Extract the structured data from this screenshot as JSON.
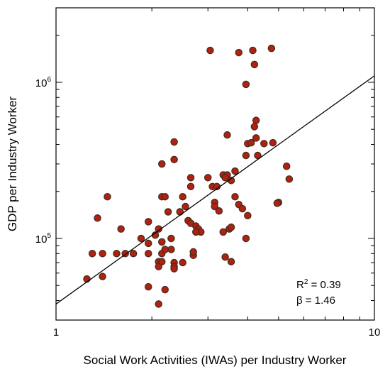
{
  "chart_data": {
    "type": "scatter",
    "xlabel": "Social Work Activities (IWAs) per Industry Worker",
    "ylabel": "GDP per Industry Worker",
    "xscale": "log",
    "yscale": "log",
    "xlim": [
      1,
      10
    ],
    "ylim": [
      30000,
      3000000
    ],
    "grid": false,
    "x_ticks": [
      {
        "value": 1,
        "label": "1"
      },
      {
        "value": 10,
        "label": "10"
      }
    ],
    "y_ticks": [
      {
        "value": 100000,
        "base": "10",
        "exp": "5"
      },
      {
        "value": 1000000,
        "base": "10",
        "exp": "6"
      }
    ],
    "annotations": {
      "r2_prefix": "R",
      "r2_sup": "2",
      "r2_value": " = 0.39",
      "beta_text": "β = 1.46"
    },
    "fit_line": {
      "x": [
        1,
        10
      ],
      "y": [
        38000,
        1100000
      ]
    },
    "points": [
      {
        "x": 3.05,
        "y": 1600000
      },
      {
        "x": 3.75,
        "y": 1550000
      },
      {
        "x": 4.15,
        "y": 1600000
      },
      {
        "x": 4.75,
        "y": 1650000
      },
      {
        "x": 4.2,
        "y": 1300000
      },
      {
        "x": 3.95,
        "y": 970000
      },
      {
        "x": 4.25,
        "y": 570000
      },
      {
        "x": 4.2,
        "y": 520000
      },
      {
        "x": 3.45,
        "y": 460000
      },
      {
        "x": 4.25,
        "y": 440000
      },
      {
        "x": 2.35,
        "y": 415000
      },
      {
        "x": 4.0,
        "y": 405000
      },
      {
        "x": 4.1,
        "y": 410000
      },
      {
        "x": 4.5,
        "y": 405000
      },
      {
        "x": 4.8,
        "y": 410000
      },
      {
        "x": 3.95,
        "y": 340000
      },
      {
        "x": 4.3,
        "y": 340000
      },
      {
        "x": 2.35,
        "y": 320000
      },
      {
        "x": 2.15,
        "y": 300000
      },
      {
        "x": 5.3,
        "y": 290000
      },
      {
        "x": 3.65,
        "y": 270000
      },
      {
        "x": 3.35,
        "y": 255000
      },
      {
        "x": 3.45,
        "y": 255000
      },
      {
        "x": 2.65,
        "y": 245000
      },
      {
        "x": 3.0,
        "y": 245000
      },
      {
        "x": 3.4,
        "y": 245000
      },
      {
        "x": 5.4,
        "y": 240000
      },
      {
        "x": 3.55,
        "y": 235000
      },
      {
        "x": 2.65,
        "y": 215000
      },
      {
        "x": 3.1,
        "y": 215000
      },
      {
        "x": 3.2,
        "y": 215000
      },
      {
        "x": 1.45,
        "y": 185000
      },
      {
        "x": 2.15,
        "y": 185000
      },
      {
        "x": 2.2,
        "y": 185000
      },
      {
        "x": 2.5,
        "y": 185000
      },
      {
        "x": 3.65,
        "y": 185000
      },
      {
        "x": 3.15,
        "y": 170000
      },
      {
        "x": 3.15,
        "y": 160000
      },
      {
        "x": 3.75,
        "y": 165000
      },
      {
        "x": 5.0,
        "y": 170000
      },
      {
        "x": 4.95,
        "y": 168000
      },
      {
        "x": 2.55,
        "y": 160000
      },
      {
        "x": 3.85,
        "y": 155000
      },
      {
        "x": 3.25,
        "y": 150000
      },
      {
        "x": 2.25,
        "y": 148000
      },
      {
        "x": 2.45,
        "y": 148000
      },
      {
        "x": 4.0,
        "y": 140000
      },
      {
        "x": 1.35,
        "y": 135000
      },
      {
        "x": 2.6,
        "y": 130000
      },
      {
        "x": 1.95,
        "y": 128000
      },
      {
        "x": 2.65,
        "y": 125000
      },
      {
        "x": 2.75,
        "y": 120000
      },
      {
        "x": 2.8,
        "y": 115000
      },
      {
        "x": 1.6,
        "y": 115000
      },
      {
        "x": 2.1,
        "y": 115000
      },
      {
        "x": 3.5,
        "y": 115000
      },
      {
        "x": 2.85,
        "y": 110000
      },
      {
        "x": 3.35,
        "y": 110000
      },
      {
        "x": 2.75,
        "y": 110000
      },
      {
        "x": 3.55,
        "y": 118000
      },
      {
        "x": 2.05,
        "y": 105000
      },
      {
        "x": 2.3,
        "y": 100000
      },
      {
        "x": 1.85,
        "y": 100000
      },
      {
        "x": 3.95,
        "y": 100000
      },
      {
        "x": 1.95,
        "y": 93000
      },
      {
        "x": 2.15,
        "y": 95000
      },
      {
        "x": 2.3,
        "y": 85000
      },
      {
        "x": 1.3,
        "y": 80000
      },
      {
        "x": 1.4,
        "y": 80000
      },
      {
        "x": 1.55,
        "y": 80000
      },
      {
        "x": 1.65,
        "y": 80000
      },
      {
        "x": 1.75,
        "y": 80000
      },
      {
        "x": 1.95,
        "y": 80000
      },
      {
        "x": 2.15,
        "y": 80000
      },
      {
        "x": 2.2,
        "y": 85000
      },
      {
        "x": 2.7,
        "y": 78000
      },
      {
        "x": 2.7,
        "y": 82000
      },
      {
        "x": 3.4,
        "y": 76000
      },
      {
        "x": 2.1,
        "y": 71000
      },
      {
        "x": 2.1,
        "y": 66000
      },
      {
        "x": 2.15,
        "y": 71000
      },
      {
        "x": 2.35,
        "y": 70000
      },
      {
        "x": 2.35,
        "y": 66000
      },
      {
        "x": 2.35,
        "y": 64000
      },
      {
        "x": 2.5,
        "y": 70000
      },
      {
        "x": 3.55,
        "y": 71000
      },
      {
        "x": 1.25,
        "y": 55000
      },
      {
        "x": 1.4,
        "y": 57000
      },
      {
        "x": 1.95,
        "y": 49000
      },
      {
        "x": 2.2,
        "y": 47000
      },
      {
        "x": 2.1,
        "y": 38000
      }
    ]
  }
}
